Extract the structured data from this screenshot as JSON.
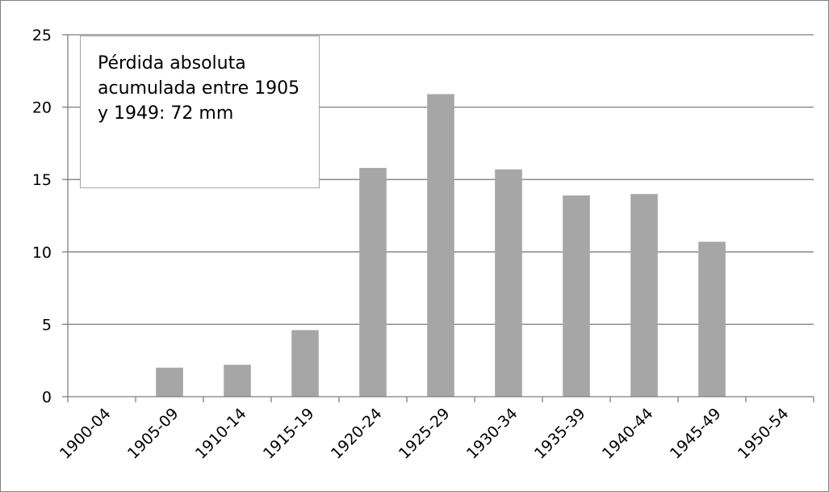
{
  "chart_data": {
    "type": "bar",
    "categories": [
      "1900-04",
      "1905-09",
      "1910-14",
      "1915-19",
      "1920-24",
      "1925-29",
      "1930-34",
      "1935-39",
      "1940-44",
      "1945-49",
      "1950-54"
    ],
    "values": [
      0,
      2.0,
      2.2,
      4.6,
      15.8,
      20.9,
      15.7,
      13.9,
      14.0,
      10.7,
      0
    ],
    "ylim": [
      0,
      25
    ],
    "yticks": [
      0,
      5,
      10,
      15,
      20,
      25
    ],
    "grid": true,
    "bar_color": "#a6a6a6",
    "annotation": "Pérdida absoluta acumulada entre 1905 y 1949: 72 mm"
  }
}
